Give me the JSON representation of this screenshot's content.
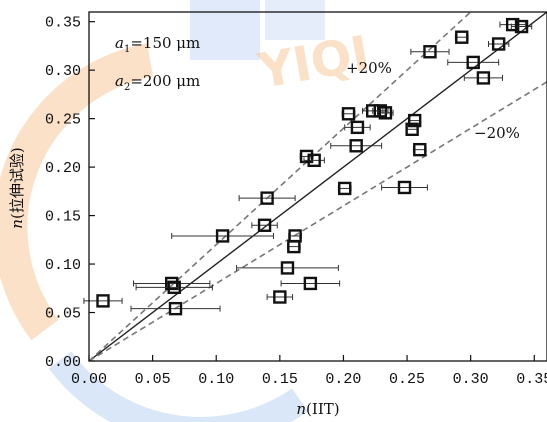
{
  "chart_data": {
    "type": "scatter",
    "title": "",
    "xlabel": "n(IIT)",
    "ylabel": "n(拉伸试验)",
    "xlim": [
      0.0,
      0.36
    ],
    "ylim": [
      0.0,
      0.36
    ],
    "xticks": [
      "0.00",
      "0.05",
      "0.10",
      "0.15",
      "0.20",
      "0.25",
      "0.30",
      "0.35"
    ],
    "yticks": [
      "0.00",
      "0.05",
      "0.10",
      "0.15",
      "0.20",
      "0.25",
      "0.30",
      "0.35"
    ],
    "grid": false,
    "legend": [
      "a1=150 μm",
      "a2=200 μm"
    ],
    "annotations": [
      "+20%",
      "−20%"
    ],
    "reference_lines": [
      {
        "type": "y=x",
        "style": "solid"
      },
      {
        "type": "y=1.2x",
        "style": "dashed",
        "label": "+20%"
      },
      {
        "type": "y=0.8x",
        "style": "dashed",
        "label": "−20%"
      }
    ],
    "points": [
      {
        "x": 0.011,
        "y": 0.062,
        "xerr": 0.015
      },
      {
        "x": 0.065,
        "y": 0.08,
        "xerr": 0.03
      },
      {
        "x": 0.067,
        "y": 0.076,
        "xerr": 0.03
      },
      {
        "x": 0.068,
        "y": 0.054,
        "xerr": 0.035
      },
      {
        "x": 0.105,
        "y": 0.129,
        "xerr": 0.04
      },
      {
        "x": 0.138,
        "y": 0.14,
        "xerr": 0.01
      },
      {
        "x": 0.14,
        "y": 0.168,
        "xerr": 0.022
      },
      {
        "x": 0.15,
        "y": 0.066,
        "xerr": 0.01
      },
      {
        "x": 0.156,
        "y": 0.096,
        "xerr": 0.04
      },
      {
        "x": 0.161,
        "y": 0.118,
        "xerr": 0.005
      },
      {
        "x": 0.162,
        "y": 0.129,
        "xerr": 0.005
      },
      {
        "x": 0.171,
        "y": 0.211,
        "xerr": 0.005
      },
      {
        "x": 0.174,
        "y": 0.08,
        "xerr": 0.023
      },
      {
        "x": 0.177,
        "y": 0.207,
        "xerr": 0.008
      },
      {
        "x": 0.201,
        "y": 0.178,
        "xerr": 0.005
      },
      {
        "x": 0.204,
        "y": 0.255,
        "xerr": 0.005
      },
      {
        "x": 0.21,
        "y": 0.222,
        "xerr": 0.02
      },
      {
        "x": 0.211,
        "y": 0.241,
        "xerr": 0.01
      },
      {
        "x": 0.223,
        "y": 0.258,
        "xerr": 0.008
      },
      {
        "x": 0.229,
        "y": 0.258,
        "xerr": 0.006
      },
      {
        "x": 0.233,
        "y": 0.256,
        "xerr": 0.006
      },
      {
        "x": 0.248,
        "y": 0.179,
        "xerr": 0.018
      },
      {
        "x": 0.254,
        "y": 0.239,
        "xerr": 0.004
      },
      {
        "x": 0.256,
        "y": 0.248,
        "xerr": 0.004
      },
      {
        "x": 0.26,
        "y": 0.218,
        "xerr": 0.005
      },
      {
        "x": 0.268,
        "y": 0.319,
        "xerr": 0.015
      },
      {
        "x": 0.293,
        "y": 0.334,
        "xerr": 0.005
      },
      {
        "x": 0.302,
        "y": 0.308,
        "xerr": 0.02
      },
      {
        "x": 0.31,
        "y": 0.292,
        "xerr": 0.015
      },
      {
        "x": 0.322,
        "y": 0.327,
        "xerr": 0.008
      },
      {
        "x": 0.333,
        "y": 0.347,
        "xerr": 0.01
      },
      {
        "x": 0.34,
        "y": 0.345,
        "xerr": 0.008
      }
    ]
  }
}
